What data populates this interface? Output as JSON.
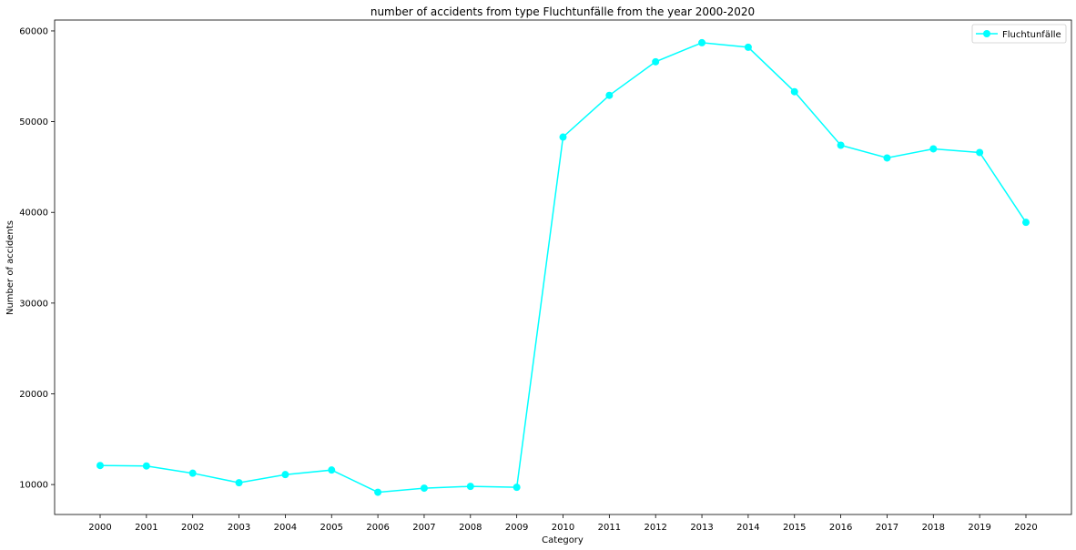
{
  "chart_data": {
    "type": "line",
    "title": "number of accidents from type Fluchtunfälle  from the year 2000-2020",
    "xlabel": "Category",
    "ylabel": "Number of accidents",
    "categories": [
      "2000",
      "2001",
      "2002",
      "2003",
      "2004",
      "2005",
      "2006",
      "2007",
      "2008",
      "2009",
      "2010",
      "2011",
      "2012",
      "2013",
      "2014",
      "2015",
      "2016",
      "2017",
      "2018",
      "2019",
      "2020"
    ],
    "series": [
      {
        "name": "Fluchtunfälle",
        "color": "#00ffff",
        "marker": "circle",
        "values": [
          12100,
          12050,
          11250,
          10200,
          11100,
          11600,
          9150,
          9600,
          9800,
          9700,
          48300,
          52900,
          56600,
          58700,
          58200,
          53300,
          47400,
          46000,
          47000,
          46600,
          38900
        ]
      }
    ],
    "ylim": [
      6700,
      61200
    ],
    "yticks": [
      10000,
      20000,
      30000,
      40000,
      50000,
      60000
    ],
    "grid": false,
    "legend_position": "top-right"
  }
}
